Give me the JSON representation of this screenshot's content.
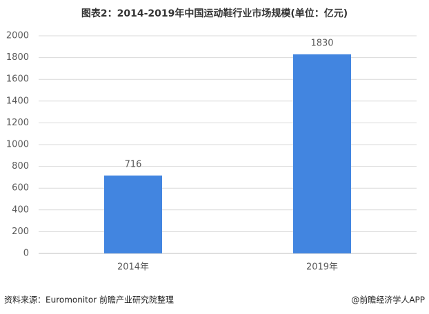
{
  "chart_data": {
    "type": "bar",
    "title": "图表2：2014-2019年中国运动鞋行业市场规模(单位：亿元)",
    "categories": [
      "2014年",
      "2019年"
    ],
    "values": [
      716,
      1830
    ],
    "color": "#4285e0",
    "ylim": [
      0,
      2000
    ],
    "yticks": [
      0,
      200,
      400,
      600,
      800,
      1000,
      1200,
      1400,
      1600,
      1800,
      2000
    ],
    "grid": true
  },
  "footer": {
    "source": "资料来源：Euromonitor  前瞻产业研究院整理",
    "credit": "@前瞻经济学人APP"
  }
}
